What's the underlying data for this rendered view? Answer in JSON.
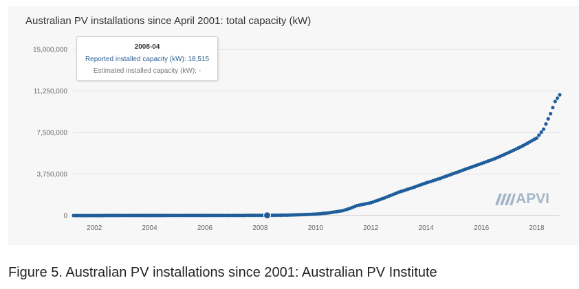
{
  "chart_data": {
    "type": "scatter",
    "title": "Australian PV installations since April 2001: total capacity (kW)",
    "y_ticks": [
      "0",
      "3,750,000",
      "7,500,000",
      "11,250,000",
      "15,000,000"
    ],
    "y_tick_values": [
      0,
      3750000,
      7500000,
      11250000,
      15000000
    ],
    "x_ticks": [
      "2002",
      "2004",
      "2006",
      "2008",
      "2010",
      "2012",
      "2014",
      "2016",
      "2018"
    ],
    "x_tick_values": [
      2002,
      2004,
      2006,
      2008,
      2010,
      2012,
      2014,
      2016,
      2018
    ],
    "xlim": [
      "2001-04",
      "2018-11"
    ],
    "ylim": [
      0,
      15000000
    ],
    "grid": true,
    "color": "#1f5d9b",
    "series": [
      {
        "points": [
          [
            "2001-04",
            0
          ],
          [
            "2002-01",
            2000
          ],
          [
            "2003-01",
            5000
          ],
          [
            "2004-01",
            8000
          ],
          [
            "2005-01",
            10000
          ],
          [
            "2006-01",
            12000
          ],
          [
            "2007-01",
            14000
          ],
          [
            "2008-01",
            17000
          ],
          [
            "2008-04",
            18515
          ],
          [
            "2009-01",
            40000
          ],
          [
            "2009-07",
            80000
          ],
          [
            "2010-01",
            130000
          ],
          [
            "2010-07",
            250000
          ],
          [
            "2011-01",
            450000
          ],
          [
            "2011-04",
            650000
          ],
          [
            "2011-07",
            900000
          ],
          [
            "2012-01",
            1150000
          ],
          [
            "2012-07",
            1600000
          ],
          [
            "2013-01",
            2100000
          ],
          [
            "2013-07",
            2500000
          ],
          [
            "2014-01",
            2950000
          ],
          [
            "2014-07",
            3350000
          ],
          [
            "2015-01",
            3800000
          ],
          [
            "2015-07",
            4250000
          ],
          [
            "2016-01",
            4700000
          ],
          [
            "2016-07",
            5150000
          ],
          [
            "2017-01",
            5700000
          ],
          [
            "2017-07",
            6300000
          ],
          [
            "2018-01",
            7000000
          ],
          [
            "2018-04",
            7800000
          ],
          [
            "2018-07",
            9200000
          ],
          [
            "2018-09",
            10300000
          ],
          [
            "2018-11",
            10900000
          ]
        ]
      }
    ],
    "highlighted_point": "2008-04",
    "tooltip": {
      "date": "2008-04",
      "reported": "Reported installed capacity (kW): 18,515",
      "estimated": "Estimated installed capacity (kW): -"
    }
  },
  "logo": {
    "text": "APVI",
    "color": "#a5b5c8"
  },
  "caption": "Figure 5. Australian PV installations since 2001: Australian PV Institute"
}
